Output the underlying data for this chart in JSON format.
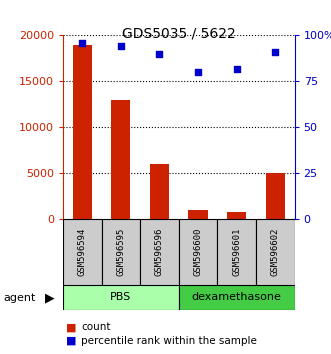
{
  "title": "GDS5035 / 5622",
  "categories": [
    "GSM596594",
    "GSM596595",
    "GSM596596",
    "GSM596600",
    "GSM596601",
    "GSM596602"
  ],
  "bar_values": [
    19000,
    13000,
    6000,
    1000,
    800,
    5000
  ],
  "scatter_values": [
    96,
    94,
    90,
    80,
    82,
    91
  ],
  "bar_color": "#cc2200",
  "scatter_color": "#0000cc",
  "left_ylim": [
    0,
    20000
  ],
  "right_ylim": [
    0,
    100
  ],
  "left_yticks": [
    0,
    5000,
    10000,
    15000,
    20000
  ],
  "left_yticklabels": [
    "0",
    "5000",
    "10000",
    "15000",
    "20000"
  ],
  "right_yticks": [
    0,
    25,
    50,
    75,
    100
  ],
  "right_yticklabels": [
    "0",
    "25",
    "50",
    "75",
    "100%"
  ],
  "group1_label": "PBS",
  "group2_label": "dexamethasone",
  "group1_color": "#aaffaa",
  "group2_color": "#44cc44",
  "agent_label": "agent",
  "legend_bar_label": "count",
  "legend_scatter_label": "percentile rank within the sample",
  "bg_color": "#cccccc",
  "bar_width": 0.5
}
